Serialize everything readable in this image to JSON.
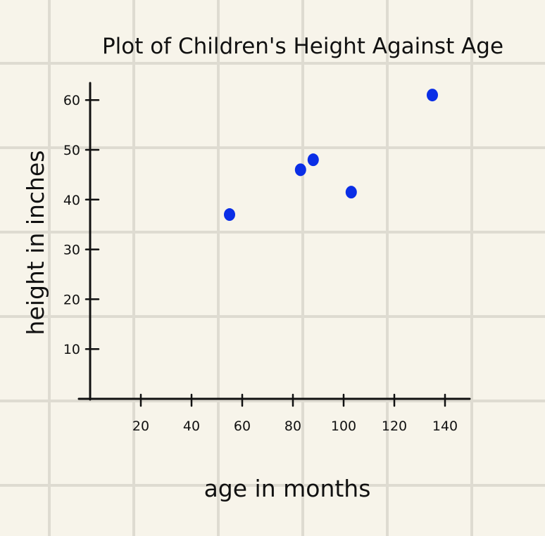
{
  "chart_data": {
    "type": "scatter",
    "title": "Plot of Children's Height Against Age",
    "xlabel": "age in months",
    "ylabel": "height in inches",
    "xlim": [
      0,
      150
    ],
    "ylim": [
      0,
      65
    ],
    "x_ticks": [
      "20",
      "40",
      "60",
      "80",
      "100",
      "120",
      "140"
    ],
    "y_ticks": [
      "10",
      "20",
      "30",
      "40",
      "50",
      "60"
    ],
    "grid": true,
    "point_color": "#0a2ee6",
    "points": [
      {
        "x": 55,
        "y": 37
      },
      {
        "x": 83,
        "y": 46
      },
      {
        "x": 88,
        "y": 48
      },
      {
        "x": 103,
        "y": 41.5
      },
      {
        "x": 135,
        "y": 61
      }
    ]
  }
}
